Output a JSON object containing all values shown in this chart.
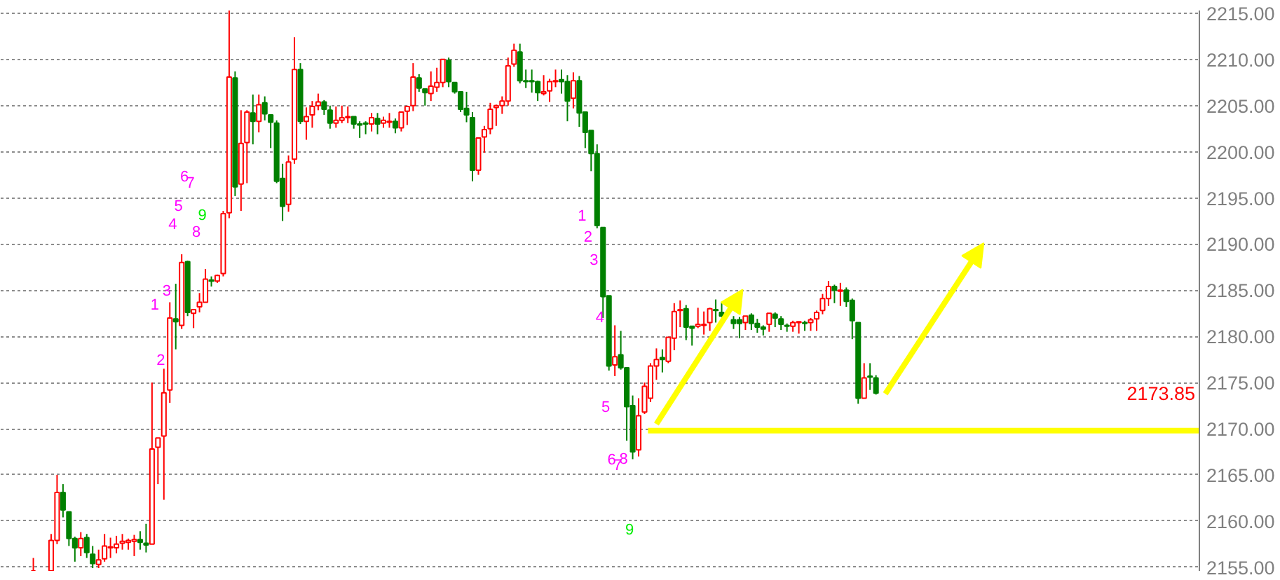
{
  "chart_data": {
    "type": "candlestick",
    "categories": [
      null,
      null,
      null,
      null,
      null,
      null,
      null,
      null,
      null,
      null,
      null,
      null,
      null,
      null,
      null,
      null,
      null,
      null,
      null,
      null,
      null,
      null,
      null,
      null,
      null,
      null,
      null,
      null,
      null,
      null,
      null,
      null,
      null,
      null,
      null,
      null,
      null,
      null,
      null,
      null,
      null,
      null,
      null,
      null,
      null,
      null,
      null,
      null,
      null,
      null,
      null,
      null,
      null,
      null,
      null,
      null,
      null,
      null,
      null,
      null,
      null,
      null,
      null,
      null,
      null,
      null,
      null,
      null,
      null,
      null,
      null,
      null,
      null,
      null,
      null,
      null,
      null,
      null,
      null,
      null,
      null,
      null,
      null,
      null,
      null,
      null,
      null,
      null,
      null,
      null,
      null,
      null,
      null,
      null,
      null,
      null,
      null,
      null,
      null,
      null,
      null,
      null,
      null,
      null,
      null,
      null,
      null,
      null,
      null,
      null,
      null,
      null,
      null,
      null,
      null,
      null,
      null,
      null,
      null,
      null,
      null,
      null,
      null,
      null,
      null,
      null,
      null,
      null,
      null,
      null,
      null,
      null,
      null,
      null,
      null,
      null,
      null,
      null,
      null,
      null,
      null,
      null,
      null,
      null,
      null,
      null,
      null,
      null,
      null,
      null,
      null,
      null,
      null,
      null,
      null,
      null,
      null,
      null,
      null,
      null,
      null,
      null,
      null,
      null,
      null,
      null,
      null,
      null,
      null,
      null,
      null,
      null,
      null,
      null,
      null,
      null,
      null,
      null,
      null,
      null,
      null,
      null,
      null,
      null,
      null,
      null,
      null,
      null,
      null,
      null,
      null,
      null,
      null,
      null,
      null,
      null,
      null,
      null,
      null,
      null,
      null,
      null
    ],
    "ohlc": [
      null,
      null,
      null,
      null,
      null,
      [
        2154.6,
        2156.0,
        2154.6,
        2154.6
      ],
      null,
      null,
      [
        2154.6,
        2158.6,
        2154.6,
        2157.9
      ],
      [
        2157.9,
        2165.0,
        2157.5,
        2163.1
      ],
      [
        2163.1,
        2164.0,
        2160.4,
        2161.2
      ],
      [
        2161.0,
        2161.0,
        2157.3,
        2158.1
      ],
      [
        2158.1,
        2158.3,
        2155.6,
        2157.1
      ],
      [
        2157.1,
        2158.8,
        2156.2,
        2158.1
      ],
      [
        2158.2,
        2158.6,
        2156.0,
        2156.6
      ],
      [
        2156.4,
        2157.3,
        2154.9,
        2155.4
      ],
      [
        2155.3,
        2156.9,
        2154.9,
        2155.8
      ],
      [
        2155.9,
        2158.6,
        2155.6,
        2157.3
      ],
      [
        2157.1,
        2158.2,
        2156.0,
        2157.2
      ],
      [
        2157.1,
        2158.4,
        2156.5,
        2157.5
      ],
      [
        2157.6,
        2158.6,
        2156.9,
        2157.8
      ],
      [
        2157.7,
        2158.1,
        2156.9,
        2157.9
      ],
      [
        2157.8,
        2158.5,
        2156.2,
        2158.0
      ],
      [
        2158.0,
        2158.9,
        2156.9,
        2157.7
      ],
      [
        2157.6,
        2159.7,
        2156.6,
        2157.4
      ],
      [
        2157.5,
        2175.0,
        2157.5,
        2167.8
      ],
      [
        2168.0,
        2169.0,
        2164.0,
        2169.0
      ],
      [
        2169.2,
        2176.5,
        2162.3,
        2173.9
      ],
      [
        2174.2,
        2183.7,
        2172.8,
        2182.0
      ],
      [
        2181.9,
        2185.7,
        2178.6,
        2181.6
      ],
      [
        2181.2,
        2188.9,
        2180.8,
        2188.0
      ],
      [
        2188.1,
        2188.2,
        2182.2,
        2182.6
      ],
      [
        2182.5,
        2182.9,
        2180.9,
        2182.9
      ],
      [
        2183.2,
        2184.7,
        2182.6,
        2183.7
      ],
      [
        2183.7,
        2187.3,
        2183.7,
        2186.2
      ],
      [
        2186.1,
        2186.5,
        2185.4,
        2186.0
      ],
      [
        2186.0,
        2186.7,
        2185.8,
        2186.6
      ],
      [
        2186.8,
        2193.6,
        2186.5,
        2193.3
      ],
      [
        2193.4,
        2215.3,
        2192.8,
        2208.1
      ],
      [
        2208.0,
        2208.7,
        2195.2,
        2196.2
      ],
      [
        2196.5,
        2204.5,
        2193.6,
        2200.9
      ],
      [
        2201.0,
        2204.5,
        2196.6,
        2204.3
      ],
      [
        2204.2,
        2206.2,
        2200.8,
        2203.3
      ],
      [
        2203.3,
        2206.2,
        2202.1,
        2205.1
      ],
      [
        2205.3,
        2206.0,
        2203.4,
        2204.1
      ],
      [
        2204.0,
        2204.0,
        2200.4,
        2203.2
      ],
      [
        2203.1,
        2203.4,
        2196.6,
        2196.8
      ],
      [
        2197.1,
        2198.7,
        2192.5,
        2194.1
      ],
      [
        2194.3,
        2199.6,
        2193.5,
        2198.9
      ],
      [
        2199.2,
        2212.4,
        2198.7,
        2208.9
      ],
      [
        2208.9,
        2209.6,
        2203.0,
        2203.3
      ],
      [
        2203.3,
        2204.8,
        2201.3,
        2203.8
      ],
      [
        2204.0,
        2205.5,
        2202.6,
        2204.9
      ],
      [
        2205.0,
        2206.3,
        2204.5,
        2205.4
      ],
      [
        2205.4,
        2205.6,
        2204.0,
        2204.6
      ],
      [
        2204.5,
        2205.0,
        2202.5,
        2203.1
      ],
      [
        2203.1,
        2204.9,
        2202.6,
        2203.4
      ],
      [
        2203.4,
        2205.0,
        2203.1,
        2203.7
      ],
      [
        2203.7,
        2204.9,
        2203.1,
        2203.8
      ],
      [
        2203.8,
        2203.8,
        2202.5,
        2203.0
      ],
      [
        2203.0,
        2203.3,
        2201.5,
        2202.9
      ],
      [
        2203.1,
        2203.3,
        2201.9,
        2203.0
      ],
      [
        2203.0,
        2204.2,
        2202.2,
        2203.7
      ],
      [
        2203.6,
        2204.2,
        2201.9,
        2203.0
      ],
      [
        2203.1,
        2203.8,
        2202.6,
        2203.4
      ],
      [
        2203.2,
        2204.2,
        2202.6,
        2203.3
      ],
      [
        2203.3,
        2203.6,
        2202.0,
        2202.6
      ],
      [
        2202.6,
        2204.3,
        2202.2,
        2204.3
      ],
      [
        2204.4,
        2205.0,
        2202.9,
        2204.9
      ],
      [
        2205.0,
        2209.6,
        2204.4,
        2208.1
      ],
      [
        2208.0,
        2208.4,
        2206.5,
        2206.9
      ],
      [
        2206.8,
        2206.8,
        2205.0,
        2206.4
      ],
      [
        2206.3,
        2208.7,
        2205.5,
        2207.1
      ],
      [
        2207.0,
        2209.1,
        2206.5,
        2207.5
      ],
      [
        2207.5,
        2210.0,
        2207.0,
        2210.0
      ],
      [
        2209.9,
        2210.2,
        2207.0,
        2207.6
      ],
      [
        2207.5,
        2207.5,
        2206.3,
        2206.5
      ],
      [
        2206.5,
        2206.5,
        2204.3,
        2204.6
      ],
      [
        2204.7,
        2206.5,
        2203.2,
        2204.0
      ],
      [
        2203.7,
        2204.3,
        2196.8,
        2198.0
      ],
      [
        2198.0,
        2201.5,
        2197.5,
        2201.5
      ],
      [
        2201.6,
        2202.8,
        2199.9,
        2202.4
      ],
      [
        2202.5,
        2205.3,
        2201.9,
        2204.6
      ],
      [
        2204.8,
        2205.1,
        2202.8,
        2205.0
      ],
      [
        2205.0,
        2206.0,
        2204.1,
        2205.5
      ],
      [
        2205.5,
        2210.2,
        2205.0,
        2209.3
      ],
      [
        2209.5,
        2211.7,
        2209.2,
        2211.0
      ],
      [
        2210.8,
        2211.7,
        2207.4,
        2207.7
      ],
      [
        2207.7,
        2208.9,
        2206.9,
        2207.6
      ],
      [
        2207.7,
        2208.9,
        2206.4,
        2207.6
      ],
      [
        2207.6,
        2207.7,
        2205.5,
        2206.4
      ],
      [
        2206.3,
        2208.3,
        2206.1,
        2206.5
      ],
      [
        2206.6,
        2207.9,
        2205.4,
        2207.6
      ],
      [
        2207.6,
        2208.9,
        2207.0,
        2207.7
      ],
      [
        2207.8,
        2208.9,
        2206.3,
        2207.6
      ],
      [
        2207.6,
        2208.3,
        2203.3,
        2205.5
      ],
      [
        2205.8,
        2208.6,
        2204.7,
        2207.7
      ],
      [
        2207.7,
        2208.2,
        2202.7,
        2204.2
      ],
      [
        2204.3,
        2204.3,
        2200.4,
        2202.1
      ],
      [
        2202.3,
        2202.3,
        2197.9,
        2199.8
      ],
      [
        2199.8,
        2200.8,
        2191.7,
        2192.0
      ],
      [
        2191.8,
        2191.8,
        2182.0,
        2184.3
      ],
      [
        2184.4,
        2184.4,
        2176.3,
        2176.8
      ],
      [
        2176.9,
        2181.2,
        2175.7,
        2177.8
      ],
      [
        2178.0,
        2180.6,
        2176.4,
        2176.6
      ],
      [
        2176.6,
        2176.6,
        2168.7,
        2172.4
      ],
      [
        2172.5,
        2173.6,
        2166.7,
        2167.5
      ],
      [
        2167.7,
        2173.3,
        2167.0,
        2171.4
      ],
      [
        2171.8,
        2175.0,
        2171.6,
        2174.6
      ],
      [
        2173.3,
        2177.1,
        2172.9,
        2176.8
      ],
      [
        2176.8,
        2178.7,
        2175.3,
        2177.5
      ],
      [
        2177.7,
        2178.6,
        2176.1,
        2177.5
      ],
      [
        2177.3,
        2179.9,
        2177.1,
        2179.9
      ],
      [
        2179.8,
        2183.6,
        2178.5,
        2182.7
      ],
      [
        2182.8,
        2183.9,
        2181.0,
        2182.9
      ],
      [
        2183.0,
        2183.4,
        2179.6,
        2181.0
      ],
      [
        2181.1,
        2181.1,
        2179.0,
        2180.9
      ],
      [
        2181.1,
        2183.1,
        2180.9,
        2181.3
      ],
      [
        2181.2,
        2182.7,
        2180.2,
        2181.3
      ],
      [
        2181.5,
        2183.1,
        2180.6,
        2183.0
      ],
      [
        2182.9,
        2184.0,
        2181.5,
        2182.8
      ],
      [
        2182.6,
        2183.7,
        2182.1,
        2182.2
      ],
      null,
      [
        2181.8,
        2182.2,
        2180.8,
        2181.4
      ],
      [
        2181.8,
        2182.1,
        2179.8,
        2181.4
      ],
      [
        2181.5,
        2182.2,
        2180.7,
        2182.2
      ],
      [
        2182.3,
        2182.5,
        2180.7,
        2181.4
      ],
      [
        2181.4,
        2181.9,
        2180.4,
        2181.0
      ],
      [
        2181.0,
        2181.2,
        2180.1,
        2180.8
      ],
      [
        2181.3,
        2182.5,
        2180.5,
        2182.5
      ],
      [
        2182.4,
        2182.6,
        2181.0,
        2182.0
      ],
      [
        2181.9,
        2182.2,
        2180.7,
        2181.3
      ],
      [
        2181.2,
        2181.4,
        2180.5,
        2181.1
      ],
      [
        2181.1,
        2181.7,
        2180.5,
        2181.5
      ],
      [
        2181.5,
        2181.6,
        2180.3,
        2181.6
      ],
      [
        2181.5,
        2181.7,
        2180.6,
        2181.4
      ],
      [
        2181.5,
        2182.0,
        2180.6,
        2181.8
      ],
      [
        2181.9,
        2182.8,
        2180.6,
        2182.6
      ],
      [
        2182.8,
        2184.6,
        2182.4,
        2184.1
      ],
      [
        2184.1,
        2186.0,
        2183.3,
        2185.4
      ],
      [
        2185.4,
        2185.6,
        2183.6,
        2185.0
      ],
      [
        2184.9,
        2185.8,
        2183.3,
        2185.0
      ],
      [
        2185.0,
        2185.3,
        2183.2,
        2183.8
      ],
      [
        2183.9,
        2184.1,
        2179.7,
        2181.7
      ],
      [
        2181.5,
        2181.5,
        2172.7,
        2173.3
      ],
      [
        2173.3,
        2177.1,
        2173.3,
        2175.5
      ],
      [
        2175.7,
        2177.1,
        2174.2,
        2175.6
      ],
      [
        2175.5,
        2175.8,
        2173.7,
        2173.85
      ],
      null,
      null,
      null,
      null,
      null,
      null,
      null,
      null,
      null,
      null,
      null,
      null,
      null,
      null,
      null,
      null,
      null,
      null,
      null,
      null,
      null,
      null,
      null,
      null,
      null,
      null,
      null,
      null,
      null,
      null,
      null,
      null,
      null,
      null,
      null,
      null,
      null,
      null,
      null,
      null,
      null,
      null,
      null,
      null,
      null,
      null,
      null,
      null,
      null,
      null,
      null,
      null,
      null,
      null
    ],
    "colors": [
      null,
      null,
      null,
      null,
      null,
      "#ff0000",
      null,
      null,
      "#ff0000",
      "#ff0000",
      "#008000",
      "#008000",
      "#008000",
      "#ff0000",
      "#008000",
      "#008000",
      "#ff0000",
      "#ff0000",
      "#ff0000",
      "#ff0000",
      "#ff0000",
      "#ff0000",
      "#ff0000",
      "#008000",
      "#008000",
      "#ff0000",
      "#ff0000",
      "#ff0000",
      "#ff0000",
      "#008000",
      "#ff0000",
      "#008000",
      "#ff0000",
      "#ff0000",
      "#ff0000",
      "#008000",
      "#ff0000",
      "#ff0000",
      "#ff0000",
      "#008000",
      "#ff0000",
      "#ff0000",
      "#008000",
      "#ff0000",
      "#008000",
      "#008000",
      "#008000",
      "#008000",
      "#ff0000",
      "#ff0000",
      "#008000",
      "#ff0000",
      "#ff0000",
      "#ff0000",
      "#008000",
      "#008000",
      "#ff0000",
      "#ff0000",
      "#ff0000",
      "#008000",
      "#008000",
      "#008000",
      "#ff0000",
      "#008000",
      "#ff0000",
      "#ff0000",
      "#008000",
      "#ff0000",
      "#ff0000",
      "#ff0000",
      "#008000",
      "#008000",
      "#ff0000",
      "#ff0000",
      "#ff0000",
      "#008000",
      "#008000",
      "#008000",
      "#008000",
      "#008000",
      "#ff0000",
      "#ff0000",
      "#ff0000",
      "#ff0000",
      "#ff0000",
      "#ff0000",
      "#ff0000",
      "#008000",
      "#008000",
      "#008000",
      "#008000",
      "#ff0000",
      "#ff0000",
      "#ff0000",
      "#008000",
      "#008000",
      "#ff0000",
      "#008000",
      "#008000",
      "#008000",
      "#008000",
      "#008000",
      "#008000",
      "#ff0000",
      "#008000",
      "#008000",
      "#008000",
      "#ff0000",
      "#ff0000",
      "#ff0000",
      "#ff0000",
      "#008000",
      "#ff0000",
      "#ff0000",
      "#ff0000",
      "#008000",
      "#008000",
      "#ff0000",
      "#ff0000",
      "#ff0000",
      "#008000",
      "#008000",
      null,
      "#008000",
      "#008000",
      "#ff0000",
      "#008000",
      "#008000",
      "#008000",
      "#ff0000",
      "#008000",
      "#008000",
      "#008000",
      "#ff0000",
      "#ff0000",
      "#008000",
      "#ff0000",
      "#ff0000",
      "#ff0000",
      "#ff0000",
      "#008000",
      "#ff0000",
      "#008000",
      "#008000",
      "#008000",
      "#ff0000",
      "#008000",
      "#008000",
      null,
      null,
      null,
      null,
      null,
      null,
      null,
      null,
      null,
      null,
      null,
      null,
      null,
      null,
      null,
      null,
      null,
      null,
      null,
      null,
      null,
      null,
      null,
      null,
      null,
      null,
      null,
      null,
      null,
      null,
      null,
      null,
      null,
      null,
      null,
      null,
      null,
      null,
      null,
      null,
      null,
      null,
      null,
      null,
      null,
      null,
      null,
      null,
      null,
      null,
      null,
      null,
      null,
      null
    ],
    "value_labels": [
      null,
      null,
      null,
      null,
      null,
      null,
      null,
      null,
      null,
      null,
      null,
      null,
      null,
      null,
      null,
      null,
      null,
      null,
      null,
      null,
      null,
      null,
      null,
      null,
      null,
      "1",
      "2",
      "3",
      "4",
      "5",
      "6",
      "7",
      "8",
      "9",
      null,
      null,
      null,
      null,
      null,
      null,
      null,
      null,
      null,
      null,
      null,
      null,
      null,
      null,
      null,
      null,
      null,
      null,
      null,
      null,
      null,
      null,
      null,
      null,
      null,
      null,
      null,
      null,
      null,
      null,
      null,
      null,
      null,
      null,
      null,
      null,
      null,
      null,
      null,
      null,
      null,
      null,
      null,
      null,
      null,
      null,
      null,
      null,
      null,
      null,
      null,
      null,
      null,
      null,
      null,
      null,
      null,
      null,
      null,
      null,
      null,
      null,
      null,
      "1",
      "2",
      "3",
      "4",
      "5",
      "6",
      "7",
      "8",
      "9",
      null,
      null,
      null,
      null,
      null,
      null,
      null,
      null,
      null,
      null,
      null,
      null,
      null,
      null,
      null,
      null,
      null,
      null,
      null,
      null,
      null,
      null,
      null,
      null,
      null,
      null,
      null,
      null,
      null,
      null,
      null,
      null,
      null,
      null,
      null,
      null,
      null,
      null,
      null,
      null,
      null,
      null,
      null,
      null,
      null,
      null,
      null,
      null,
      null,
      null,
      null,
      null,
      null,
      null,
      null,
      null,
      null,
      null,
      null,
      null,
      null,
      null,
      null,
      null,
      null,
      null,
      null,
      null,
      null,
      null,
      null,
      null,
      null,
      null,
      null,
      null,
      null,
      null,
      null,
      null,
      null,
      null,
      null,
      null,
      null,
      null,
      null,
      null,
      null,
      null,
      null,
      null,
      null,
      null,
      null,
      null
    ],
    "ylim": [
      2154.6,
      2215.3
    ],
    "yticks": [
      {
        "value": 2155,
        "label": "2155.00"
      },
      {
        "value": 2160,
        "label": "2160.00"
      },
      {
        "value": 2165,
        "label": "2165.00"
      },
      {
        "value": 2170,
        "label": "2170.00"
      },
      {
        "value": 2175,
        "label": "2175.00"
      },
      {
        "value": 2180,
        "label": "2180.00"
      },
      {
        "value": 2185,
        "label": "2185.00"
      },
      {
        "value": 2190,
        "label": "2190.00"
      },
      {
        "value": 2195,
        "label": "2195.00"
      },
      {
        "value": 2200,
        "label": "2200.00"
      },
      {
        "value": 2205,
        "label": "2205.00"
      },
      {
        "value": 2210,
        "label": "2210.00"
      },
      {
        "value": 2215,
        "label": "2215.00"
      }
    ],
    "grid": "y",
    "tick_labels": "y",
    "ref_lines": [
      {
        "axis": "y",
        "value": 2169.8,
        "color": "#ffff00"
      }
    ],
    "annotations": [
      "2173.85"
    ]
  }
}
